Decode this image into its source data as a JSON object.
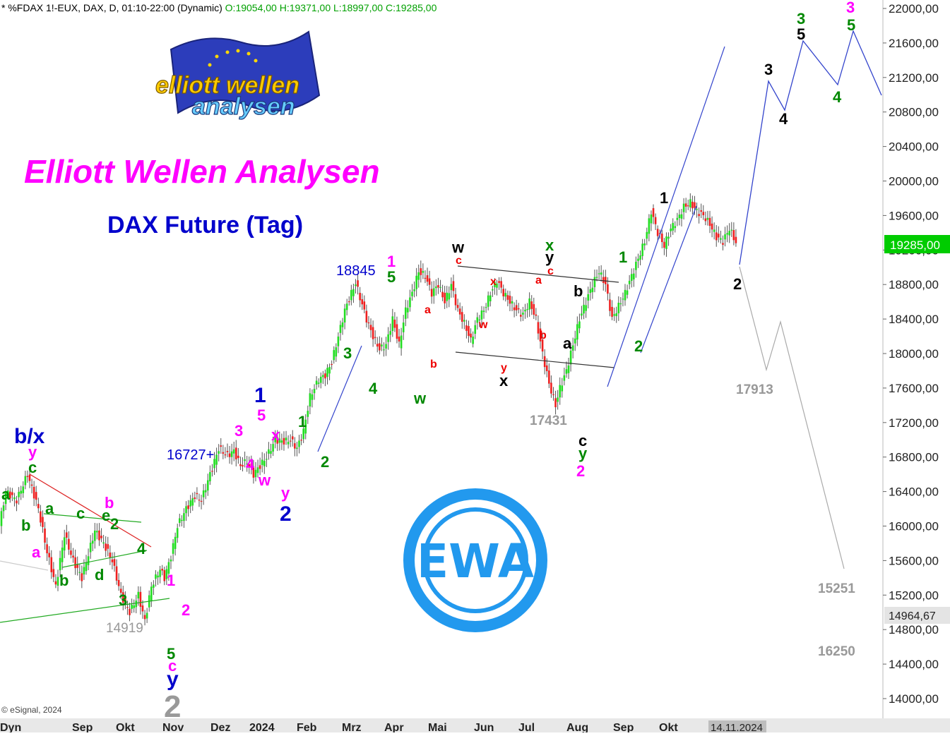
{
  "header": {
    "symbol": "* %FDAX 1!-EUX, DAX, D, 01:10-22:00 (Dynamic)",
    "ohlc": "O:19054,00 H:19371,00 L:18997,00 C:19285,00"
  },
  "title": "Elliott Wellen Analysen",
  "subtitle": "DAX Future (Tag)",
  "logo": {
    "line1": "elliott wellen",
    "line2": "analysen"
  },
  "badge": "EWA",
  "copyright": "© eSignal, 2024",
  "colors": {
    "up": "#22dd22",
    "down": "#ee2020",
    "accent": "#ff00ff",
    "blue": "#0000cc",
    "green": "#008800",
    "gray": "#999999",
    "price_tag": "#00cc00",
    "badge": "#2299ee"
  },
  "chart_data": {
    "type": "candlestick",
    "title": "DAX Future (Tag)",
    "ylim": [
      13800,
      22100
    ],
    "y_ticks": [
      "22000,00",
      "21600,00",
      "21200,00",
      "20800,00",
      "20400,00",
      "20000,00",
      "19600,00",
      "19200,00",
      "18800,00",
      "18400,00",
      "18000,00",
      "17600,00",
      "17200,00",
      "16800,00",
      "16400,00",
      "16000,00",
      "15600,00",
      "15200,00",
      "14800,00",
      "14400,00",
      "14000,00"
    ],
    "x_labels": [
      "Dyn",
      "Sep",
      "Okt",
      "Nov",
      "Dez",
      "2024",
      "Feb",
      "Mrz",
      "Apr",
      "Mai",
      "Jun",
      "Jul",
      "Aug",
      "Sep",
      "Okt"
    ],
    "date_marker": "14.11.2024",
    "last_price": "19285,00",
    "cursor_price": "14964,67",
    "levels": [
      "18845",
      "16727+",
      "14919",
      "17431",
      "17913",
      "15251",
      "16250"
    ],
    "path_points": [
      [
        0,
        16000
      ],
      [
        3,
        16400
      ],
      [
        8,
        16300
      ],
      [
        13,
        16600
      ],
      [
        18,
        16200
      ],
      [
        22,
        15700
      ],
      [
        26,
        15300
      ],
      [
        30,
        15900
      ],
      [
        34,
        15600
      ],
      [
        38,
        15400
      ],
      [
        44,
        15950
      ],
      [
        48,
        15800
      ],
      [
        52,
        15600
      ],
      [
        56,
        15200
      ],
      [
        60,
        15000
      ],
      [
        64,
        15200
      ],
      [
        67,
        14900
      ],
      [
        70,
        15300
      ],
      [
        74,
        15500
      ],
      [
        76,
        15400
      ],
      [
        79,
        15650
      ],
      [
        82,
        16000
      ],
      [
        86,
        16200
      ],
      [
        90,
        16350
      ],
      [
        93,
        16300
      ],
      [
        97,
        16600
      ],
      [
        101,
        16900
      ],
      [
        105,
        16820
      ],
      [
        108,
        16870
      ],
      [
        111,
        16700
      ],
      [
        114,
        16750
      ],
      [
        117,
        16600
      ],
      [
        120,
        16700
      ],
      [
        123,
        16800
      ],
      [
        127,
        17000
      ],
      [
        131,
        16980
      ],
      [
        134,
        17000
      ],
      [
        137,
        16900
      ],
      [
        140,
        17100
      ],
      [
        143,
        17500
      ],
      [
        147,
        17700
      ],
      [
        150,
        17750
      ],
      [
        153,
        17900
      ],
      [
        156,
        18200
      ],
      [
        159,
        18500
      ],
      [
        162,
        18700
      ],
      [
        164,
        18820
      ],
      [
        166,
        18650
      ],
      [
        169,
        18400
      ],
      [
        172,
        18200
      ],
      [
        175,
        18050
      ],
      [
        178,
        18100
      ],
      [
        181,
        18400
      ],
      [
        184,
        18100
      ],
      [
        187,
        18500
      ],
      [
        190,
        18700
      ],
      [
        193,
        18950
      ],
      [
        196,
        18900
      ],
      [
        199,
        18700
      ],
      [
        202,
        18800
      ],
      [
        205,
        18600
      ],
      [
        208,
        18800
      ],
      [
        211,
        18500
      ],
      [
        214,
        18350
      ],
      [
        217,
        18150
      ],
      [
        220,
        18400
      ],
      [
        223,
        18500
      ],
      [
        226,
        18700
      ],
      [
        229,
        18850
      ],
      [
        232,
        18700
      ],
      [
        235,
        18600
      ],
      [
        238,
        18500
      ],
      [
        241,
        18450
      ],
      [
        244,
        18600
      ],
      [
        247,
        18400
      ],
      [
        250,
        18000
      ],
      [
        253,
        17650
      ],
      [
        256,
        17400
      ],
      [
        258,
        17600
      ],
      [
        261,
        17800
      ],
      [
        264,
        18100
      ],
      [
        267,
        18400
      ],
      [
        270,
        18600
      ],
      [
        273,
        18800
      ],
      [
        276,
        18950
      ],
      [
        279,
        18800
      ],
      [
        282,
        18400
      ],
      [
        285,
        18550
      ],
      [
        288,
        18700
      ],
      [
        291,
        18900
      ],
      [
        294,
        19100
      ],
      [
        297,
        19300
      ],
      [
        300,
        19650
      ],
      [
        303,
        19400
      ],
      [
        306,
        19250
      ],
      [
        309,
        19450
      ],
      [
        312,
        19550
      ],
      [
        315,
        19700
      ],
      [
        318,
        19750
      ],
      [
        321,
        19650
      ],
      [
        324,
        19600
      ],
      [
        327,
        19500
      ],
      [
        330,
        19350
      ],
      [
        333,
        19300
      ],
      [
        336,
        19450
      ],
      [
        339,
        19285
      ]
    ],
    "annotations": [
      {
        "text": "b/x",
        "color": "#0000cc",
        "big": true
      },
      {
        "text": "y",
        "color": "#ff00ff"
      },
      {
        "text": "c",
        "color": "#008800"
      },
      {
        "text": "a",
        "color": "#008800"
      },
      {
        "text": "b",
        "color": "#008800"
      },
      {
        "text": "a",
        "color": "#ff00ff"
      },
      {
        "text": "a",
        "color": "#008800"
      },
      {
        "text": "b",
        "color": "#008800"
      },
      {
        "text": "c",
        "color": "#008800"
      },
      {
        "text": "d",
        "color": "#008800"
      },
      {
        "text": "b",
        "color": "#ff00ff"
      },
      {
        "text": "e",
        "color": "#008800"
      },
      {
        "text": "2",
        "color": "#008800"
      },
      {
        "text": "4",
        "color": "#008800"
      },
      {
        "text": "3",
        "color": "#008800"
      },
      {
        "text": "1",
        "color": "#ff00ff"
      },
      {
        "text": "2",
        "color": "#ff00ff"
      },
      {
        "text": "5",
        "color": "#008800"
      },
      {
        "text": "c",
        "color": "#ff00ff"
      },
      {
        "text": "y",
        "color": "#0000cc",
        "big": true
      },
      {
        "text": "2",
        "color": "#999999",
        "huge": true
      },
      {
        "text": "3",
        "color": "#ff00ff"
      },
      {
        "text": "1",
        "color": "#0000cc",
        "big": true
      },
      {
        "text": "5",
        "color": "#ff00ff"
      },
      {
        "text": "x",
        "color": "#ff00ff"
      },
      {
        "text": "4",
        "color": "#ff00ff"
      },
      {
        "text": "w",
        "color": "#ff00ff"
      },
      {
        "text": "y",
        "color": "#ff00ff"
      },
      {
        "text": "2",
        "color": "#0000cc",
        "big": true
      },
      {
        "text": "1",
        "color": "#008800"
      },
      {
        "text": "2",
        "color": "#008800"
      },
      {
        "text": "3",
        "color": "#008800"
      },
      {
        "text": "4",
        "color": "#008800"
      },
      {
        "text": "1",
        "color": "#ff00ff"
      },
      {
        "text": "5",
        "color": "#008800"
      },
      {
        "text": "a",
        "color": "#ee0000",
        "small": true
      },
      {
        "text": "b",
        "color": "#ee0000",
        "small": true
      },
      {
        "text": "w",
        "color": "#008800"
      },
      {
        "text": "w",
        "color": "#000000"
      },
      {
        "text": "c",
        "color": "#ee0000",
        "small": true
      },
      {
        "text": "x",
        "color": "#ee0000",
        "small": true
      },
      {
        "text": "w",
        "color": "#ee0000",
        "small": true
      },
      {
        "text": "y",
        "color": "#ee0000",
        "small": true
      },
      {
        "text": "x",
        "color": "#000000"
      },
      {
        "text": "x",
        "color": "#008800"
      },
      {
        "text": "y",
        "color": "#000000"
      },
      {
        "text": "c",
        "color": "#ee0000",
        "small": true
      },
      {
        "text": "a",
        "color": "#ee0000",
        "small": true
      },
      {
        "text": "b",
        "color": "#ee0000",
        "small": true
      },
      {
        "text": "b",
        "color": "#000000"
      },
      {
        "text": "a",
        "color": "#000000"
      },
      {
        "text": "c",
        "color": "#000000"
      },
      {
        "text": "y",
        "color": "#008800"
      },
      {
        "text": "2",
        "color": "#ff00ff"
      },
      {
        "text": "1",
        "color": "#008800"
      },
      {
        "text": "2",
        "color": "#008800"
      },
      {
        "text": "1",
        "color": "#000000"
      },
      {
        "text": "2",
        "color": "#000000"
      },
      {
        "text": "3",
        "color": "#000000"
      },
      {
        "text": "4",
        "color": "#000000"
      },
      {
        "text": "3",
        "color": "#008800"
      },
      {
        "text": "5",
        "color": "#000000"
      },
      {
        "text": "4",
        "color": "#008800"
      },
      {
        "text": "3",
        "color": "#ff00ff"
      },
      {
        "text": "5",
        "color": "#008800"
      }
    ]
  }
}
